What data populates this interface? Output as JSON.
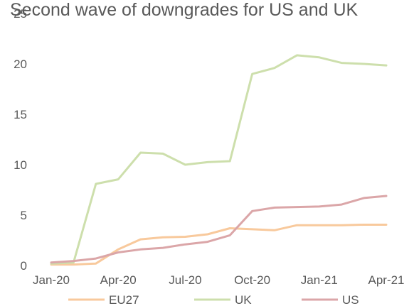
{
  "chart_data": {
    "type": "line",
    "title": "Second wave of downgrades for US and UK",
    "xlabel": "",
    "ylabel": "",
    "x": [
      "Jan-20",
      "Feb-20",
      "Mar-20",
      "Apr-20",
      "May-20",
      "Jun-20",
      "Jul-20",
      "Aug-20",
      "Sep-20",
      "Oct-20",
      "Nov-20",
      "Dec-20",
      "Jan-21",
      "Feb-21",
      "Mar-21",
      "Apr-21"
    ],
    "x_tick_labels": [
      "Jan-20",
      "Apr-20",
      "Jul-20",
      "Oct-20",
      "Jan-21",
      "Apr-21"
    ],
    "ylim": [
      0,
      25
    ],
    "y_ticks": [
      0,
      5,
      10,
      15,
      20,
      25
    ],
    "grid": false,
    "legend_position": "bottom",
    "series": [
      {
        "name": "EU27",
        "color": "#f8c99c",
        "values": [
          0.1,
          0.1,
          0.2,
          1.6,
          2.6,
          2.8,
          2.85,
          3.1,
          3.7,
          3.6,
          3.5,
          4.0,
          4.0,
          4.0,
          4.05,
          4.05
        ]
      },
      {
        "name": "UK",
        "color": "#cddfac",
        "values": [
          0.2,
          0.3,
          8.1,
          8.55,
          11.2,
          11.1,
          10.0,
          10.25,
          10.35,
          19.0,
          19.6,
          20.85,
          20.65,
          20.1,
          20.0,
          19.85
        ]
      },
      {
        "name": "US",
        "color": "#dba6a8",
        "values": [
          0.3,
          0.45,
          0.7,
          1.3,
          1.6,
          1.75,
          2.1,
          2.35,
          3.0,
          5.4,
          5.75,
          5.8,
          5.85,
          6.05,
          6.7,
          6.9
        ]
      }
    ]
  }
}
